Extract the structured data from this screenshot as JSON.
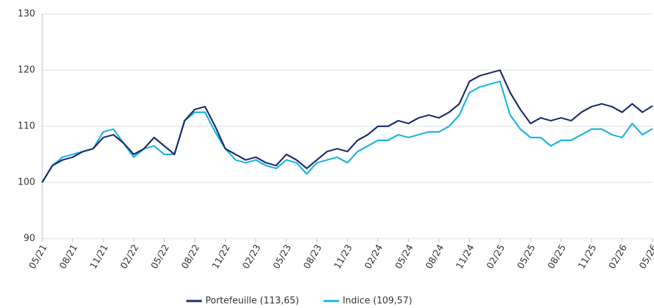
{
  "chart_data": {
    "type": "line",
    "categories": [
      "05/21",
      null,
      null,
      "08/21",
      null,
      null,
      "11/21",
      null,
      null,
      "02/22",
      null,
      null,
      "05/22",
      null,
      null,
      "08/22",
      null,
      null,
      "11/22",
      null,
      null,
      "02/23",
      null,
      null,
      "05/23",
      null,
      null,
      "08/23",
      null,
      null,
      "11/23",
      null,
      null,
      "02/24",
      null,
      null,
      "05/24",
      null,
      null,
      "08/24",
      null,
      null,
      "11/24",
      null,
      null,
      "02/25",
      null,
      null,
      "05/25",
      null,
      null,
      "08/25",
      null,
      null,
      "11/25",
      null,
      null,
      "02/26",
      null,
      null,
      "05/26"
    ],
    "series": [
      {
        "name": "Portefeuille (113,65)",
        "color": "#1b2a6b",
        "values": [
          100,
          103,
          104,
          104.5,
          105.5,
          106,
          108,
          108.5,
          107,
          105,
          106,
          108,
          106.5,
          105,
          111,
          113,
          113.5,
          110,
          106,
          105,
          104,
          104.5,
          103.5,
          103,
          105,
          104,
          102.5,
          104,
          105.5,
          106,
          105.5,
          107.5,
          108.5,
          110,
          110,
          111,
          110.5,
          111.5,
          112,
          111.5,
          112.5,
          114,
          118,
          119,
          119.5,
          120,
          116,
          113,
          110.5,
          111.5,
          111,
          111.5,
          111,
          112.5,
          113.5,
          114,
          113.5,
          112.5,
          114,
          112.5,
          113.65
        ]
      },
      {
        "name": "Indice (109,57)",
        "color": "#19b3e0",
        "values": [
          100,
          103,
          104.5,
          105,
          105.5,
          106,
          109,
          109.5,
          107,
          104.5,
          106,
          106.5,
          105,
          105,
          111,
          112.5,
          112.5,
          109,
          106,
          104,
          103.5,
          104,
          103,
          102.5,
          104,
          103.5,
          101.5,
          103.5,
          104,
          104.5,
          103.5,
          105.5,
          106.5,
          107.5,
          107.5,
          108.5,
          108,
          108.5,
          109,
          109,
          110,
          112,
          116,
          117,
          117.5,
          118,
          112,
          109.5,
          108,
          108,
          106.5,
          107.5,
          107.5,
          108.5,
          109.5,
          109.5,
          108.5,
          108,
          110.5,
          108.5,
          109.57
        ]
      }
    ],
    "ylim": [
      90,
      130
    ],
    "yticks": [
      90,
      100,
      110,
      120,
      130
    ],
    "grid": true
  }
}
